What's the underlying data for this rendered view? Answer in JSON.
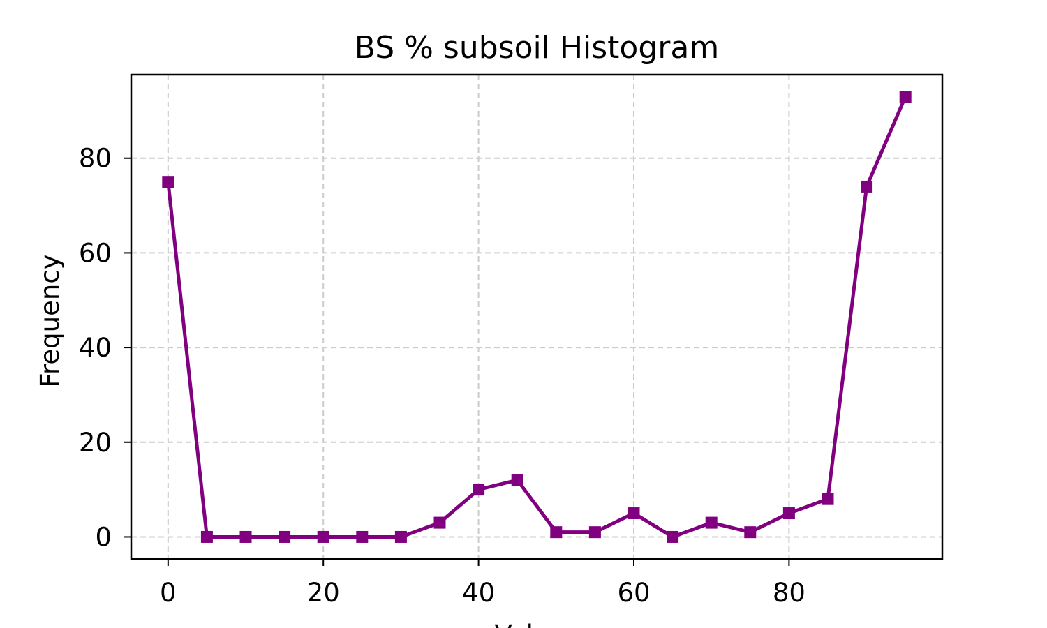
{
  "chart_data": {
    "type": "line",
    "title": "BS % subsoil Histogram",
    "xlabel": "Values",
    "ylabel": "Frequency",
    "xlim": [
      -4.75,
      99.75
    ],
    "ylim": [
      -4.65,
      97.65
    ],
    "xticks": [
      0,
      20,
      40,
      60,
      80
    ],
    "yticks": [
      0,
      20,
      40,
      60,
      80
    ],
    "grid": true,
    "color": "#800080",
    "marker": "square",
    "series": [
      {
        "x": [
          0,
          5,
          10,
          15,
          20,
          25,
          30,
          35,
          40,
          45,
          50,
          55,
          60,
          65,
          70,
          75,
          80,
          85,
          90,
          95
        ],
        "values": [
          75,
          0,
          0,
          0,
          0,
          0,
          0,
          3,
          10,
          12,
          1,
          1,
          5,
          0,
          3,
          1,
          5,
          8,
          74,
          93
        ]
      }
    ]
  }
}
